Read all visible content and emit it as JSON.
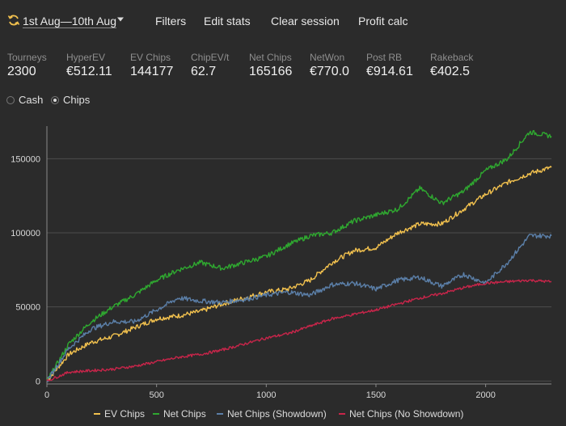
{
  "toolbar": {
    "date_range": "1st Aug—10th Aug",
    "filters": "Filters",
    "edit_stats": "Edit stats",
    "clear_session": "Clear session",
    "profit_calc": "Profit calc"
  },
  "stats": [
    {
      "label": "Tourneys",
      "value": "2300"
    },
    {
      "label": "HyperEV",
      "value": "€512.11"
    },
    {
      "label": "EV Chips",
      "value": "144177"
    },
    {
      "label": "ChipEV/t",
      "value": "62.7"
    },
    {
      "label": "Net Chips",
      "value": "165166"
    },
    {
      "label": "NetWon",
      "value": "€770.0"
    },
    {
      "label": "Post RB",
      "value": "€914.61"
    },
    {
      "label": "Rakeback",
      "value": "€402.5"
    }
  ],
  "mode": {
    "options": [
      "Cash",
      "Chips"
    ],
    "selected": "Chips"
  },
  "chart_data": {
    "type": "line",
    "xlim": [
      0,
      2300
    ],
    "ylim": [
      -2000,
      172000
    ],
    "x_ticks": [
      "0",
      "500",
      "1000",
      "1500",
      "2000"
    ],
    "y_ticks": [
      "0",
      "50000",
      "100000",
      "150000"
    ],
    "grid": "horizontal",
    "legend_position": "bottom",
    "series": [
      {
        "name": "EV Chips",
        "color": "#f2c14e",
        "x": [
          0,
          100,
          200,
          300,
          400,
          500,
          600,
          700,
          800,
          900,
          1000,
          1100,
          1200,
          1300,
          1400,
          1500,
          1600,
          1700,
          1800,
          1900,
          2000,
          2100,
          2200,
          2300
        ],
        "y": [
          0,
          18000,
          26000,
          30000,
          36000,
          42000,
          44000,
          47000,
          52000,
          56000,
          60000,
          62000,
          68000,
          80000,
          88000,
          90000,
          100000,
          106000,
          106000,
          116000,
          126000,
          134000,
          140000,
          144177
        ]
      },
      {
        "name": "Net Chips",
        "color": "#2fa830",
        "x": [
          0,
          100,
          200,
          300,
          400,
          500,
          600,
          700,
          800,
          900,
          1000,
          1100,
          1200,
          1300,
          1400,
          1500,
          1600,
          1700,
          1800,
          1900,
          2000,
          2100,
          2200,
          2300
        ],
        "y": [
          0,
          25000,
          40000,
          50000,
          58000,
          68000,
          75000,
          80000,
          76000,
          80000,
          84000,
          92000,
          98000,
          100000,
          108000,
          112000,
          116000,
          130000,
          120000,
          128000,
          142000,
          150000,
          168000,
          165166
        ]
      },
      {
        "name": "Net Chips (Showdown)",
        "color": "#5b7fa8",
        "x": [
          0,
          100,
          200,
          300,
          400,
          500,
          600,
          700,
          800,
          900,
          1000,
          1100,
          1200,
          1300,
          1400,
          1500,
          1600,
          1700,
          1800,
          1900,
          2000,
          2100,
          2200,
          2300
        ],
        "y": [
          0,
          22000,
          35000,
          40000,
          40000,
          48000,
          56000,
          54000,
          53000,
          55000,
          58000,
          60000,
          58000,
          65000,
          66000,
          62000,
          68000,
          70000,
          64000,
          72000,
          66000,
          80000,
          98000,
          98000
        ]
      },
      {
        "name": "Net Chips (No Showdown)",
        "color": "#c8254a",
        "x": [
          0,
          100,
          200,
          300,
          400,
          500,
          600,
          700,
          800,
          900,
          1000,
          1100,
          1200,
          1300,
          1400,
          1500,
          1600,
          1700,
          1800,
          1900,
          2000,
          2100,
          2200,
          2300
        ],
        "y": [
          0,
          6000,
          7000,
          8000,
          10000,
          13000,
          16000,
          18000,
          21000,
          25000,
          29000,
          32000,
          37000,
          42000,
          45000,
          48000,
          52000,
          56000,
          59000,
          63000,
          66000,
          67000,
          68000,
          67000
        ]
      }
    ]
  }
}
